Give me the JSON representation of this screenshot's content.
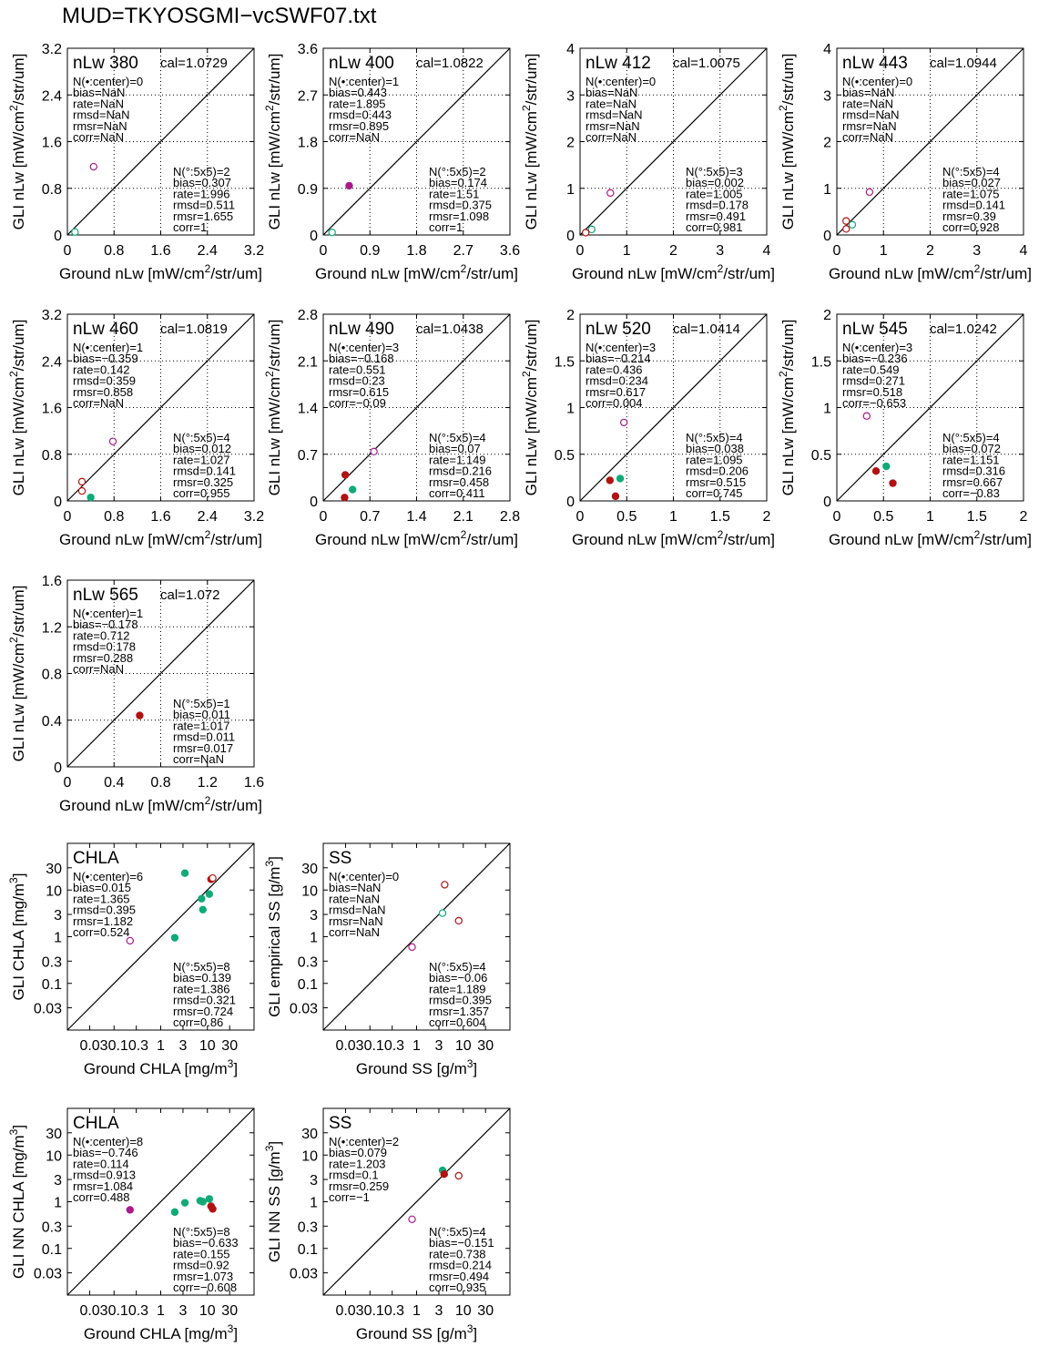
{
  "page_title": "MUD=TKYOSGMI−vcSWF07.txt",
  "chart_data": [
    {
      "type": "scatter",
      "scale": "linear",
      "title": "nLw 380",
      "cal": "cal=1.0729",
      "xlabel": "Ground nLw [mW/cm^2/str/um]",
      "ylabel": "GLI nLw [mW/cm^2/str/um]",
      "xlim": [
        0,
        3.2
      ],
      "ylim": [
        0,
        3.2
      ],
      "ticks": [
        "0",
        "0.8",
        "1.6",
        "2.4",
        "3.2"
      ],
      "grid": "dotted",
      "stats_center": [
        "N(•:center)=0",
        "bias=NaN",
        "rate=NaN",
        "rmsd=NaN",
        "rmsr=NaN",
        "corr=NaN"
      ],
      "stats_box": [
        "N(°:5x5)=2",
        "bias=0.307",
        "rate=1.996",
        "rmsd=0.511",
        "rmsr=1.655",
        "corr=1"
      ],
      "points": [
        {
          "x": 0.45,
          "y": 1.17,
          "filled": false,
          "color": "#aa1a8a"
        },
        {
          "x": 0.13,
          "y": 0.05,
          "filled": false,
          "color": "#11aa77"
        }
      ]
    },
    {
      "type": "scatter",
      "scale": "linear",
      "title": "nLw 400",
      "cal": "cal=1.0822",
      "xlabel": "Ground nLw [mW/cm^2/str/um]",
      "ylabel": "GLI nLw [mW/cm^2/str/um]",
      "xlim": [
        0,
        3.6
      ],
      "ylim": [
        0,
        3.6
      ],
      "ticks": [
        "0",
        "0.9",
        "1.8",
        "2.7",
        "3.6"
      ],
      "grid": "dotted",
      "stats_center": [
        "N(•:center)=1",
        "bias=0.443",
        "rate=1.895",
        "rmsd=0.443",
        "rmsr=0.895",
        "corr=NaN"
      ],
      "stats_box": [
        "N(°:5x5)=2",
        "bias=0.174",
        "rate=1.51",
        "rmsd=0.375",
        "rmsr=1.098",
        "corr=1"
      ],
      "points": [
        {
          "x": 0.5,
          "y": 0.95,
          "filled": true,
          "color": "#aa1a8a"
        },
        {
          "x": 0.17,
          "y": 0.05,
          "filled": false,
          "color": "#11aa77"
        }
      ]
    },
    {
      "type": "scatter",
      "scale": "linear",
      "title": "nLw 412",
      "cal": "cal=1.0075",
      "xlabel": "Ground nLw [mW/cm^2/str/um]",
      "ylabel": "GLI nLw [mW/cm^2/str/um]",
      "xlim": [
        0,
        4
      ],
      "ylim": [
        0,
        4
      ],
      "ticks": [
        "0",
        "1",
        "2",
        "3",
        "4"
      ],
      "grid": "dotted",
      "stats_center": [
        "N(•:center)=0",
        "bias=NaN",
        "rate=NaN",
        "rmsd=NaN",
        "rmsr=NaN",
        "corr=NaN"
      ],
      "stats_box": [
        "N(°:5x5)=3",
        "bias=0.002",
        "rate=1.005",
        "rmsd=0.178",
        "rmsr=0.491",
        "corr=0.981"
      ],
      "points": [
        {
          "x": 0.65,
          "y": 0.9,
          "filled": false,
          "color": "#aa1a8a"
        },
        {
          "x": 0.25,
          "y": 0.12,
          "filled": false,
          "color": "#11aa77"
        },
        {
          "x": 0.12,
          "y": 0.05,
          "filled": false,
          "color": "#b21212"
        }
      ]
    },
    {
      "type": "scatter",
      "scale": "linear",
      "title": "nLw 443",
      "cal": "cal=1.0944",
      "xlabel": "Ground nLw [mW/cm^2/str/um]",
      "ylabel": "GLI nLw [mW/cm^2/str/um]",
      "xlim": [
        0,
        4
      ],
      "ylim": [
        0,
        4
      ],
      "ticks": [
        "0",
        "1",
        "2",
        "3",
        "4"
      ],
      "grid": "dotted",
      "stats_center": [
        "N(•:center)=0",
        "bias=NaN",
        "rate=NaN",
        "rmsd=NaN",
        "rmsr=NaN",
        "corr=NaN"
      ],
      "stats_box": [
        "N(°:5x5)=4",
        "bias=0.027",
        "rate=1.075",
        "rmsd=0.141",
        "rmsr=0.39",
        "corr=0.928"
      ],
      "points": [
        {
          "x": 0.7,
          "y": 0.92,
          "filled": false,
          "color": "#aa1a8a"
        },
        {
          "x": 0.33,
          "y": 0.22,
          "filled": false,
          "color": "#11aa77"
        },
        {
          "x": 0.2,
          "y": 0.3,
          "filled": false,
          "color": "#b21212"
        },
        {
          "x": 0.2,
          "y": 0.13,
          "filled": false,
          "color": "#b21212"
        }
      ]
    },
    {
      "type": "scatter",
      "scale": "linear",
      "title": "nLw 460",
      "cal": "cal=1.0819",
      "xlabel": "Ground nLw [mW/cm^2/str/um]",
      "ylabel": "GLI nLw [mW/cm^2/str/um]",
      "xlim": [
        0,
        3.2
      ],
      "ylim": [
        0,
        3.2
      ],
      "ticks": [
        "0",
        "0.8",
        "1.6",
        "2.4",
        "3.2"
      ],
      "grid": "dotted",
      "stats_center": [
        "N(•:center)=1",
        "bias=−0.359",
        "rate=0.142",
        "rmsd=0.359",
        "rmsr=0.858",
        "corr=NaN"
      ],
      "stats_box": [
        "N(°:5x5)=4",
        "bias=0.012",
        "rate=1.027",
        "rmsd=0.141",
        "rmsr=0.325",
        "corr=0.955"
      ],
      "points": [
        {
          "x": 0.78,
          "y": 1.02,
          "filled": false,
          "color": "#aa1a8a"
        },
        {
          "x": 0.25,
          "y": 0.33,
          "filled": false,
          "color": "#b21212"
        },
        {
          "x": 0.25,
          "y": 0.17,
          "filled": false,
          "color": "#b21212"
        },
        {
          "x": 0.4,
          "y": 0.06,
          "filled": true,
          "color": "#11aa77"
        }
      ]
    },
    {
      "type": "scatter",
      "scale": "linear",
      "title": "nLw 490",
      "cal": "cal=1.0438",
      "xlabel": "Ground nLw [mW/cm^2/str/um]",
      "ylabel": "GLI nLw [mW/cm^2/str/um]",
      "xlim": [
        0,
        2.8
      ],
      "ylim": [
        0,
        2.8
      ],
      "ticks": [
        "0",
        "0.7",
        "1.4",
        "2.1",
        "2.8"
      ],
      "grid": "dotted",
      "stats_center": [
        "N(•:center)=3",
        "bias=−0.168",
        "rate=0.551",
        "rmsd=0.23",
        "rmsr=0.615",
        "corr=−0.09"
      ],
      "stats_box": [
        "N(°:5x5)=4",
        "bias=0.07",
        "rate=1.149",
        "rmsd=0.216",
        "rmsr=0.458",
        "corr=0.411"
      ],
      "points": [
        {
          "x": 0.76,
          "y": 0.74,
          "filled": false,
          "color": "#aa1a8a"
        },
        {
          "x": 0.33,
          "y": 0.39,
          "filled": true,
          "color": "#b21212"
        },
        {
          "x": 0.44,
          "y": 0.17,
          "filled": true,
          "color": "#11aa77"
        },
        {
          "x": 0.32,
          "y": 0.05,
          "filled": true,
          "color": "#b21212"
        }
      ]
    },
    {
      "type": "scatter",
      "scale": "linear",
      "title": "nLw 520",
      "cal": "cal=1.0414",
      "xlabel": "Ground nLw [mW/cm^2/str/um]",
      "ylabel": "GLI nLw [mW/cm^2/str/um]",
      "xlim": [
        0,
        2
      ],
      "ylim": [
        0,
        2
      ],
      "ticks": [
        "0",
        "0.5",
        "1",
        "1.5",
        "2"
      ],
      "grid": "dotted",
      "stats_center": [
        "N(•:center)=3",
        "bias=−0.214",
        "rate=0.436",
        "rmsd=0.234",
        "rmsr=0.617",
        "corr=0.004"
      ],
      "stats_box": [
        "N(°:5x5)=4",
        "bias=0.038",
        "rate=1.095",
        "rmsd=0.206",
        "rmsr=0.515",
        "corr=0.745"
      ],
      "points": [
        {
          "x": 0.47,
          "y": 0.84,
          "filled": false,
          "color": "#aa1a8a"
        },
        {
          "x": 0.43,
          "y": 0.24,
          "filled": true,
          "color": "#11aa77"
        },
        {
          "x": 0.32,
          "y": 0.22,
          "filled": true,
          "color": "#b21212"
        },
        {
          "x": 0.38,
          "y": 0.05,
          "filled": true,
          "color": "#b21212"
        }
      ]
    },
    {
      "type": "scatter",
      "scale": "linear",
      "title": "nLw 545",
      "cal": "cal=1.0242",
      "xlabel": "Ground nLw [mW/cm^2/str/um]",
      "ylabel": "GLI nLw [mW/cm^2/str/um]",
      "xlim": [
        0,
        2
      ],
      "ylim": [
        0,
        2
      ],
      "ticks": [
        "0",
        "0.5",
        "1",
        "1.5",
        "2"
      ],
      "grid": "dotted",
      "stats_center": [
        "N(•:center)=3",
        "bias=−0.236",
        "rate=0.549",
        "rmsd=0.271",
        "rmsr=0.518",
        "corr=−0.653"
      ],
      "stats_box": [
        "N(°:5x5)=4",
        "bias=0.072",
        "rate=1.151",
        "rmsd=0.316",
        "rmsr=0.667",
        "corr=−0.83"
      ],
      "points": [
        {
          "x": 0.32,
          "y": 0.91,
          "filled": false,
          "color": "#aa1a8a"
        },
        {
          "x": 0.53,
          "y": 0.37,
          "filled": true,
          "color": "#11aa77"
        },
        {
          "x": 0.42,
          "y": 0.32,
          "filled": true,
          "color": "#b21212"
        },
        {
          "x": 0.6,
          "y": 0.19,
          "filled": true,
          "color": "#b21212"
        }
      ]
    },
    {
      "type": "scatter",
      "scale": "linear",
      "title": "nLw 565",
      "cal": "cal=1.072",
      "xlabel": "Ground nLw [mW/cm^2/str/um]",
      "ylabel": "GLI nLw [mW/cm^2/str/um]",
      "xlim": [
        0,
        1.6
      ],
      "ylim": [
        0,
        1.6
      ],
      "ticks": [
        "0",
        "0.4",
        "0.8",
        "1.2",
        "1.6"
      ],
      "grid": "dotted",
      "stats_center": [
        "N(•:center)=1",
        "bias=−0.178",
        "rate=0.712",
        "rmsd=0.178",
        "rmsr=0.288",
        "corr=NaN"
      ],
      "stats_box": [
        "N(°:5x5)=1",
        "bias=0.011",
        "rate=1.017",
        "rmsd=0.011",
        "rmsr=0.017",
        "corr=NaN"
      ],
      "points": [
        {
          "x": 0.62,
          "y": 0.44,
          "filled": true,
          "color": "#b21212"
        }
      ]
    },
    {
      "type": "scatter",
      "scale": "log",
      "title": "CHLA",
      "cal": "",
      "xlabel": "Ground CHLA [mg/m^3]",
      "ylabel": "GLI CHLA [mg/m^3]",
      "xlim": [
        0.01,
        100
      ],
      "ylim": [
        0.01,
        100
      ],
      "ticks": [
        "0.03",
        "0.1",
        "0.3",
        "1",
        "3",
        "10",
        "30"
      ],
      "xtick_labels": [
        "0.030.10.3",
        "1",
        "3",
        "10",
        "30"
      ],
      "grid": "none",
      "stats_center": [
        "N(•:center)=6",
        "bias=0.015",
        "rate=1.365",
        "rmsd=0.395",
        "rmsr=1.182",
        "corr=0.524"
      ],
      "stats_box": [
        "N(°:5x5)=8",
        "bias=0.139",
        "rate=1.386",
        "rmsd=0.321",
        "rmsr=0.724",
        "corr=0.86"
      ],
      "points": [
        {
          "x": 3.3,
          "y": 23,
          "filled": true,
          "color": "#11aa77"
        },
        {
          "x": 12,
          "y": 17,
          "filled": true,
          "color": "#b21212"
        },
        {
          "x": 13,
          "y": 18,
          "filled": false,
          "color": "#b21212"
        },
        {
          "x": 11,
          "y": 8.2,
          "filled": true,
          "color": "#11aa77"
        },
        {
          "x": 7.5,
          "y": 6.5,
          "filled": true,
          "color": "#11aa77"
        },
        {
          "x": 8,
          "y": 3.8,
          "filled": true,
          "color": "#11aa77"
        },
        {
          "x": 2,
          "y": 0.95,
          "filled": true,
          "color": "#11aa77"
        },
        {
          "x": 0.22,
          "y": 0.82,
          "filled": false,
          "color": "#aa1a8a"
        }
      ]
    },
    {
      "type": "scatter",
      "scale": "log",
      "title": "SS",
      "cal": "",
      "xlabel": "Ground SS [g/m^3]",
      "ylabel": "GLI empirical SS [g/m^3]",
      "xlim": [
        0.01,
        100
      ],
      "ylim": [
        0.01,
        100
      ],
      "ticks": [
        "0.03",
        "0.1",
        "0.3",
        "1",
        "3",
        "10",
        "30"
      ],
      "xtick_labels": [
        "0.030.10.3",
        "1",
        "3",
        "10",
        "30"
      ],
      "grid": "none",
      "stats_center": [
        "N(•:center)=0",
        "bias=NaN",
        "rate=NaN",
        "rmsd=NaN",
        "rmsr=NaN",
        "corr=NaN"
      ],
      "stats_box": [
        "N(°:5x5)=4",
        "bias=−0.06",
        "rate=1.189",
        "rmsd=0.395",
        "rmsr=1.357",
        "corr=0.604"
      ],
      "points": [
        {
          "x": 4,
          "y": 13,
          "filled": false,
          "color": "#b21212"
        },
        {
          "x": 3.6,
          "y": 3.2,
          "filled": false,
          "color": "#11aa77"
        },
        {
          "x": 8,
          "y": 2.2,
          "filled": false,
          "color": "#b21212"
        },
        {
          "x": 0.8,
          "y": 0.6,
          "filled": false,
          "color": "#aa1a8a"
        }
      ]
    },
    {
      "type": "scatter",
      "scale": "log",
      "title": "CHLA",
      "cal": "",
      "xlabel": "Ground CHLA [mg/m^3]",
      "ylabel": "GLI NN CHLA [mg/m^3]",
      "xlim": [
        0.01,
        100
      ],
      "ylim": [
        0.01,
        100
      ],
      "ticks": [
        "0.03",
        "0.1",
        "0.3",
        "1",
        "3",
        "10",
        "30"
      ],
      "xtick_labels": [
        "0.030.10.3",
        "1",
        "3",
        "10",
        "30"
      ],
      "grid": "none",
      "stats_center": [
        "N(•:center)=8",
        "bias=−0.746",
        "rate=0.114",
        "rmsd=0.913",
        "rmsr=1.084",
        "corr=0.488"
      ],
      "stats_box": [
        "N(°:5x5)=8",
        "bias=−0.633",
        "rate=0.155",
        "rmsd=0.92",
        "rmsr=1.073",
        "corr=−0.608"
      ],
      "points": [
        {
          "x": 2,
          "y": 0.6,
          "filled": true,
          "color": "#11aa77"
        },
        {
          "x": 3.3,
          "y": 0.95,
          "filled": true,
          "color": "#11aa77"
        },
        {
          "x": 7,
          "y": 1.05,
          "filled": true,
          "color": "#11aa77"
        },
        {
          "x": 8,
          "y": 1.0,
          "filled": true,
          "color": "#11aa77"
        },
        {
          "x": 11,
          "y": 1.15,
          "filled": true,
          "color": "#11aa77"
        },
        {
          "x": 12,
          "y": 0.8,
          "filled": true,
          "color": "#b21212"
        },
        {
          "x": 13,
          "y": 0.7,
          "filled": true,
          "color": "#b21212"
        },
        {
          "x": 0.22,
          "y": 0.67,
          "filled": true,
          "color": "#aa1a8a"
        }
      ]
    },
    {
      "type": "scatter",
      "scale": "log",
      "title": "SS",
      "cal": "",
      "xlabel": "Ground SS [g/m^3]",
      "ylabel": "GLI NN SS [g/m^3]",
      "xlim": [
        0.01,
        100
      ],
      "ylim": [
        0.01,
        100
      ],
      "ticks": [
        "0.03",
        "0.1",
        "0.3",
        "1",
        "3",
        "10",
        "30"
      ],
      "xtick_labels": [
        "0.030.10.3",
        "1",
        "3",
        "10",
        "30"
      ],
      "grid": "none",
      "stats_center": [
        "N(•:center)=2",
        "bias=0.079",
        "rate=1.203",
        "rmsd=0.1",
        "rmsr=0.259",
        "corr=−1"
      ],
      "stats_box": [
        "N(°:5x5)=4",
        "bias=−0.151",
        "rate=0.738",
        "rmsd=0.214",
        "rmsr=0.494",
        "corr=0.935"
      ],
      "points": [
        {
          "x": 3.6,
          "y": 4.7,
          "filled": true,
          "color": "#11aa77"
        },
        {
          "x": 3.9,
          "y": 3.9,
          "filled": true,
          "color": "#b21212"
        },
        {
          "x": 8,
          "y": 3.6,
          "filled": false,
          "color": "#b21212"
        },
        {
          "x": 0.8,
          "y": 0.42,
          "filled": false,
          "color": "#aa1a8a"
        }
      ]
    }
  ]
}
